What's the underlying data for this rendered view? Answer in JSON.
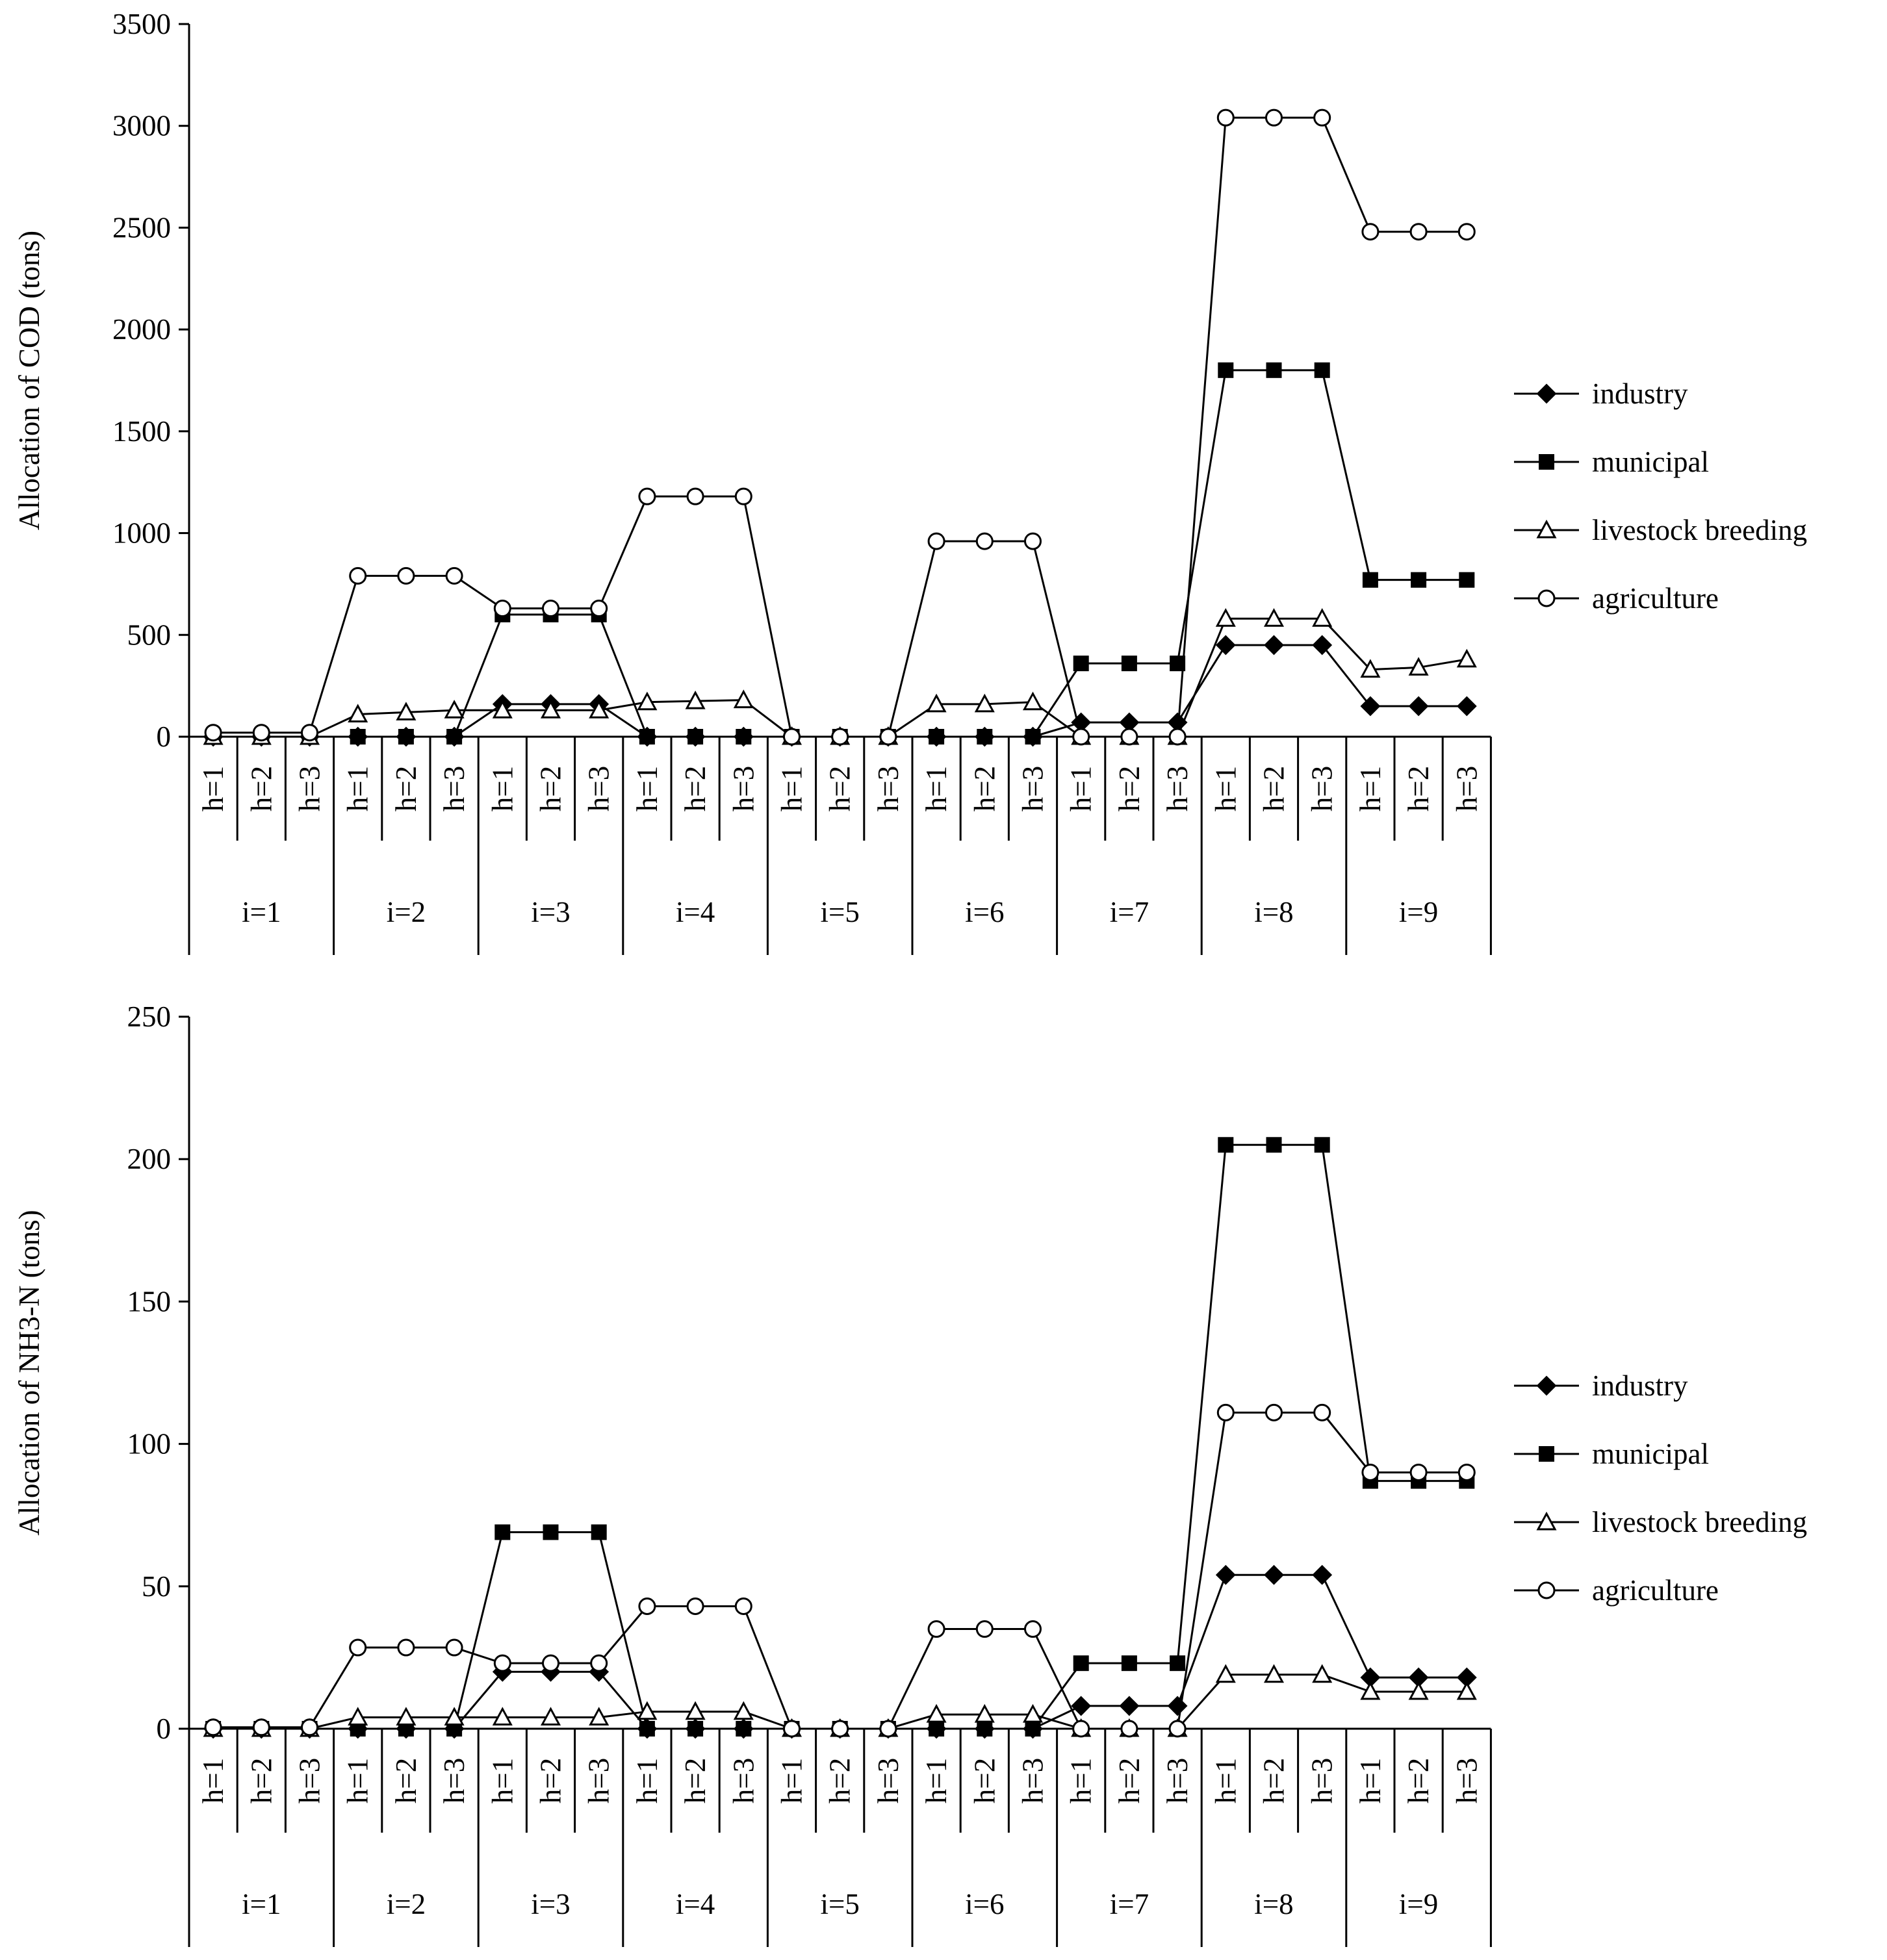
{
  "chart_data": [
    {
      "type": "line",
      "ylabel": "Allocation of COD (tons)",
      "ylim": [
        0,
        3500
      ],
      "yticks": [
        0,
        500,
        1000,
        1500,
        2000,
        2500,
        3000,
        3500
      ],
      "grid": false,
      "legend_position": "right",
      "groups": [
        "i=1",
        "i=2",
        "i=3",
        "i=4",
        "i=5",
        "i=6",
        "i=7",
        "i=8",
        "i=9"
      ],
      "subcategories": [
        "h=1",
        "h=2",
        "h=3"
      ],
      "series": [
        {
          "name": "industry",
          "marker": "diamond",
          "values": [
            0,
            0,
            0,
            0,
            0,
            0,
            160,
            160,
            160,
            0,
            0,
            0,
            0,
            0,
            0,
            0,
            0,
            0,
            70,
            70,
            70,
            450,
            450,
            450,
            150,
            150,
            150
          ]
        },
        {
          "name": "municipal",
          "marker": "square",
          "values": [
            0,
            0,
            0,
            0,
            0,
            0,
            600,
            600,
            600,
            0,
            0,
            0,
            0,
            0,
            0,
            0,
            0,
            0,
            360,
            360,
            360,
            1800,
            1800,
            1800,
            770,
            770,
            770
          ]
        },
        {
          "name": "livestock breeding",
          "marker": "triangle",
          "values": [
            0,
            0,
            0,
            110,
            120,
            130,
            130,
            130,
            130,
            170,
            175,
            180,
            0,
            0,
            0,
            160,
            160,
            170,
            0,
            0,
            0,
            580,
            580,
            580,
            330,
            340,
            380
          ]
        },
        {
          "name": "agriculture",
          "marker": "circle",
          "values": [
            20,
            20,
            20,
            790,
            790,
            790,
            630,
            630,
            630,
            1180,
            1180,
            1180,
            0,
            0,
            0,
            960,
            960,
            960,
            0,
            0,
            0,
            3040,
            3040,
            3040,
            2480,
            2480,
            2480
          ]
        }
      ]
    },
    {
      "type": "line",
      "ylabel": "Allocation of NH3-N (tons)",
      "ylim": [
        0,
        250
      ],
      "yticks": [
        0,
        50,
        100,
        150,
        200,
        250
      ],
      "grid": false,
      "legend_position": "right",
      "groups": [
        "i=1",
        "i=2",
        "i=3",
        "i=4",
        "i=5",
        "i=6",
        "i=7",
        "i=8",
        "i=9"
      ],
      "subcategories": [
        "h=1",
        "h=2",
        "h=3"
      ],
      "series": [
        {
          "name": "industry",
          "marker": "diamond",
          "values": [
            0,
            0,
            0,
            0,
            0,
            0,
            20,
            20,
            20,
            0,
            0,
            0,
            0,
            0,
            0,
            0,
            0,
            0,
            8,
            8,
            8,
            54,
            54,
            54,
            18,
            18,
            18
          ]
        },
        {
          "name": "municipal",
          "marker": "square",
          "values": [
            0,
            0,
            0,
            0,
            0,
            0,
            69,
            69,
            69,
            0,
            0,
            0,
            0,
            0,
            0,
            0,
            0,
            0,
            23,
            23,
            23,
            205,
            205,
            205,
            87,
            87,
            87
          ]
        },
        {
          "name": "livestock breeding",
          "marker": "triangle",
          "values": [
            0,
            0,
            0,
            4,
            4,
            4,
            4,
            4,
            4,
            6,
            6,
            6,
            0,
            0,
            0,
            5,
            5,
            5,
            0,
            0,
            0,
            19,
            19,
            19,
            13,
            13,
            13
          ]
        },
        {
          "name": "agriculture",
          "marker": "circle",
          "values": [
            0.5,
            0.5,
            0.5,
            28.5,
            28.5,
            28.5,
            23,
            23,
            23,
            43,
            43,
            43,
            0,
            0,
            0,
            35,
            35,
            35,
            0,
            0,
            0,
            111,
            111,
            111,
            90,
            90,
            90
          ]
        }
      ]
    }
  ]
}
